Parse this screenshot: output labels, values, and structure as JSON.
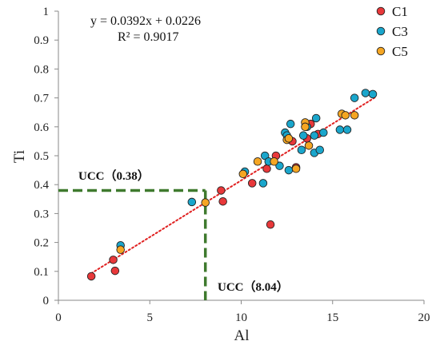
{
  "chart_data": {
    "type": "scatter",
    "xlabel": "Al",
    "ylabel": "Ti",
    "xlim": [
      0,
      20
    ],
    "ylim": [
      0,
      1
    ],
    "x_ticks": [
      "0",
      "5",
      "10",
      "15",
      "20"
    ],
    "y_ticks": [
      "0",
      "0.1",
      "0.2",
      "0.3",
      "0.4",
      "0.5",
      "0.6",
      "0.7",
      "0.8",
      "0.9",
      "1"
    ],
    "equation": "y = 0.0392x + 0.0226",
    "r_squared": "R² = 0.9017",
    "trendline": {
      "slope": 0.0392,
      "intercept": 0.0226,
      "x_range": [
        1.8,
        17.3
      ],
      "color": "#e02020"
    },
    "legend_position": "top-right",
    "grid": false,
    "series": [
      {
        "name": "C1",
        "color": "#e8383a",
        "points": [
          [
            1.8,
            0.083
          ],
          [
            3.0,
            0.14
          ],
          [
            3.1,
            0.102
          ],
          [
            8.9,
            0.38
          ],
          [
            9.0,
            0.342
          ],
          [
            10.6,
            0.405
          ],
          [
            11.4,
            0.455
          ],
          [
            11.6,
            0.262
          ],
          [
            11.9,
            0.5
          ],
          [
            12.8,
            0.55
          ],
          [
            13.0,
            0.46
          ],
          [
            13.6,
            0.56
          ],
          [
            13.8,
            0.61
          ],
          [
            14.2,
            0.575
          ]
        ]
      },
      {
        "name": "C3",
        "color": "#1aa6cc",
        "points": [
          [
            3.4,
            0.19
          ],
          [
            7.3,
            0.34
          ],
          [
            10.2,
            0.445
          ],
          [
            11.2,
            0.405
          ],
          [
            11.3,
            0.5
          ],
          [
            11.5,
            0.48
          ],
          [
            12.1,
            0.465
          ],
          [
            12.4,
            0.58
          ],
          [
            12.5,
            0.57
          ],
          [
            12.6,
            0.45
          ],
          [
            12.7,
            0.61
          ],
          [
            13.3,
            0.52
          ],
          [
            13.4,
            0.57
          ],
          [
            13.6,
            0.6
          ],
          [
            14.0,
            0.51
          ],
          [
            14.0,
            0.57
          ],
          [
            14.1,
            0.63
          ],
          [
            14.3,
            0.52
          ],
          [
            14.5,
            0.58
          ],
          [
            15.4,
            0.59
          ],
          [
            15.8,
            0.59
          ],
          [
            16.2,
            0.7
          ],
          [
            16.8,
            0.717
          ],
          [
            17.2,
            0.713
          ]
        ]
      },
      {
        "name": "C5",
        "color": "#f5a623",
        "points": [
          [
            3.4,
            0.175
          ],
          [
            8.04,
            0.338
          ],
          [
            10.1,
            0.437
          ],
          [
            10.9,
            0.48
          ],
          [
            11.8,
            0.48
          ],
          [
            12.5,
            0.555
          ],
          [
            12.6,
            0.56
          ],
          [
            13.0,
            0.455
          ],
          [
            13.5,
            0.615
          ],
          [
            13.5,
            0.6
          ],
          [
            13.7,
            0.535
          ],
          [
            15.5,
            0.645
          ],
          [
            15.7,
            0.64
          ],
          [
            16.2,
            0.64
          ]
        ]
      }
    ],
    "annotations": {
      "ucc_ti_label": "UCC（0.38）",
      "ucc_ti_value": 0.38,
      "ucc_al_label": "UCC（8.04）",
      "ucc_al_value": 8.04,
      "guide_color": "#3f7a2e"
    }
  }
}
